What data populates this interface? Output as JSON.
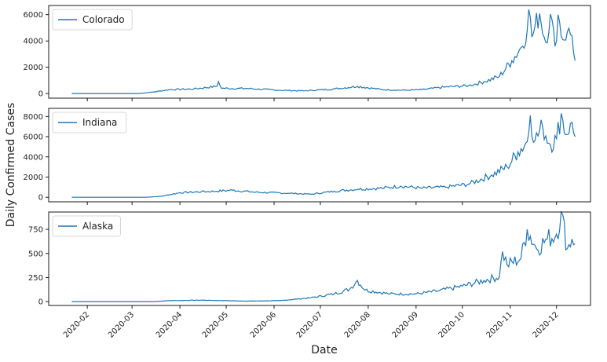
{
  "chart_data": {
    "type": "line",
    "xlabel": "Date",
    "ylabel": "Daily Confirmed Cases",
    "x_range": [
      "2020-01-22",
      "2020-12-13"
    ],
    "x_ticks": [
      "2020-02",
      "2020-03",
      "2020-04",
      "2020-05",
      "2020-06",
      "2020-07",
      "2020-08",
      "2020-09",
      "2020-10",
      "2020-11",
      "2020-12"
    ],
    "line_color": "#1f77b4",
    "legend_position": "upper-left",
    "grid": false,
    "panels": [
      {
        "name": "Colorado",
        "ylim": [
          -350,
          6700
        ],
        "yticks": [
          0,
          2000,
          4000,
          6000
        ],
        "keypoints": [
          [
            "2020-01-22",
            0
          ],
          [
            "2020-03-05",
            0
          ],
          [
            "2020-03-15",
            120
          ],
          [
            "2020-03-25",
            300
          ],
          [
            "2020-04-10",
            350
          ],
          [
            "2020-04-25",
            550
          ],
          [
            "2020-04-26",
            900
          ],
          [
            "2020-04-28",
            400
          ],
          [
            "2020-05-15",
            380
          ],
          [
            "2020-06-05",
            250
          ],
          [
            "2020-06-20",
            200
          ],
          [
            "2020-07-10",
            350
          ],
          [
            "2020-07-25",
            550
          ],
          [
            "2020-08-10",
            300
          ],
          [
            "2020-08-25",
            250
          ],
          [
            "2020-09-05",
            300
          ],
          [
            "2020-09-20",
            500
          ],
          [
            "2020-10-05",
            600
          ],
          [
            "2020-10-15",
            900
          ],
          [
            "2020-10-25",
            1300
          ],
          [
            "2020-11-02",
            2500
          ],
          [
            "2020-11-08",
            3500
          ],
          [
            "2020-11-12",
            4800
          ],
          [
            "2020-11-13",
            6400
          ],
          [
            "2020-11-15",
            4300
          ],
          [
            "2020-11-20",
            6100
          ],
          [
            "2020-11-24",
            3900
          ],
          [
            "2020-11-27",
            6050
          ],
          [
            "2020-11-30",
            3600
          ],
          [
            "2020-12-02",
            6000
          ],
          [
            "2020-12-05",
            4100
          ],
          [
            "2020-12-08",
            4700
          ],
          [
            "2020-12-11",
            4400
          ],
          [
            "2020-12-13",
            2500
          ]
        ]
      },
      {
        "name": "Indiana",
        "ylim": [
          -450,
          8800
        ],
        "yticks": [
          0,
          2000,
          4000,
          6000,
          8000
        ],
        "keypoints": [
          [
            "2020-01-22",
            0
          ],
          [
            "2020-03-10",
            0
          ],
          [
            "2020-03-20",
            100
          ],
          [
            "2020-04-01",
            450
          ],
          [
            "2020-04-15",
            550
          ],
          [
            "2020-04-25",
            600
          ],
          [
            "2020-05-05",
            700
          ],
          [
            "2020-05-20",
            500
          ],
          [
            "2020-06-10",
            400
          ],
          [
            "2020-06-25",
            300
          ],
          [
            "2020-07-10",
            600
          ],
          [
            "2020-07-25",
            800
          ],
          [
            "2020-08-10",
            900
          ],
          [
            "2020-08-22",
            1100
          ],
          [
            "2020-09-05",
            900
          ],
          [
            "2020-09-20",
            1000
          ],
          [
            "2020-10-05",
            1300
          ],
          [
            "2020-10-20",
            2200
          ],
          [
            "2020-10-30",
            3000
          ],
          [
            "2020-11-06",
            4500
          ],
          [
            "2020-11-12",
            5500
          ],
          [
            "2020-11-14",
            8100
          ],
          [
            "2020-11-17",
            5600
          ],
          [
            "2020-11-22",
            7000
          ],
          [
            "2020-11-27",
            5200
          ],
          [
            "2020-12-01",
            5800
          ],
          [
            "2020-12-04",
            8300
          ],
          [
            "2020-12-07",
            6200
          ],
          [
            "2020-12-10",
            7300
          ],
          [
            "2020-12-13",
            6000
          ]
        ]
      },
      {
        "name": "Alaska",
        "ylim": [
          -40,
          930
        ],
        "yticks": [
          0,
          250,
          500,
          750
        ],
        "keypoints": [
          [
            "2020-01-22",
            0
          ],
          [
            "2020-03-15",
            0
          ],
          [
            "2020-03-25",
            10
          ],
          [
            "2020-04-15",
            15
          ],
          [
            "2020-05-15",
            5
          ],
          [
            "2020-06-05",
            10
          ],
          [
            "2020-06-25",
            40
          ],
          [
            "2020-07-10",
            80
          ],
          [
            "2020-07-20",
            130
          ],
          [
            "2020-07-25",
            220
          ],
          [
            "2020-07-30",
            120
          ],
          [
            "2020-08-15",
            80
          ],
          [
            "2020-09-01",
            80
          ],
          [
            "2020-09-15",
            110
          ],
          [
            "2020-10-01",
            160
          ],
          [
            "2020-10-15",
            220
          ],
          [
            "2020-10-25",
            260
          ],
          [
            "2020-10-27",
            520
          ],
          [
            "2020-10-30",
            380
          ],
          [
            "2020-11-08",
            450
          ],
          [
            "2020-11-12",
            750
          ],
          [
            "2020-11-18",
            550
          ],
          [
            "2020-11-25",
            650
          ],
          [
            "2020-12-01",
            700
          ],
          [
            "2020-12-04",
            930
          ],
          [
            "2020-12-08",
            550
          ],
          [
            "2020-12-11",
            650
          ],
          [
            "2020-12-13",
            600
          ]
        ]
      }
    ]
  }
}
